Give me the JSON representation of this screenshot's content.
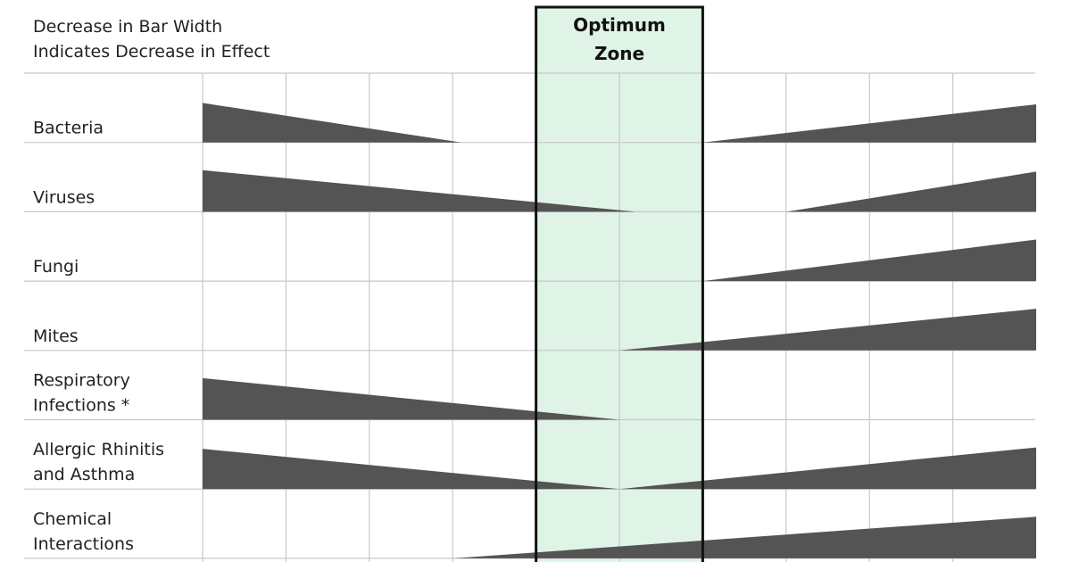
{
  "chart_data": {
    "type": "area",
    "title_lines": [
      "Decrease in Bar Width",
      "Indicates Decrease in Effect"
    ],
    "zone_label_lines": [
      "Optimum",
      "Zone"
    ],
    "zone_columns": [
      4,
      6
    ],
    "column_count": 10,
    "colors": {
      "wedge": "#545454",
      "zone_fill": "#dff3e6",
      "zone_border": "#111111",
      "grid": "#c8c8c8"
    },
    "grid": true,
    "rows": [
      {
        "label_lines": [
          "Bacteria"
        ],
        "left_wedge": {
          "start": 0,
          "end": 3.1,
          "thickness": 0.57
        },
        "right_wedge": {
          "start": 6,
          "end": 10,
          "thickness": 0.55
        }
      },
      {
        "label_lines": [
          "Viruses"
        ],
        "left_wedge": {
          "start": 0,
          "end": 5.2,
          "thickness": 0.6
        },
        "right_wedge": {
          "start": 7,
          "end": 10,
          "thickness": 0.58
        }
      },
      {
        "label_lines": [
          "Fungi"
        ],
        "left_wedge": null,
        "right_wedge": {
          "start": 6,
          "end": 10,
          "thickness": 0.6
        }
      },
      {
        "label_lines": [
          "Mites"
        ],
        "left_wedge": null,
        "right_wedge": {
          "start": 5,
          "end": 10,
          "thickness": 0.6
        }
      },
      {
        "label_lines": [
          "Respiratory",
          "Infections *"
        ],
        "left_wedge": {
          "start": 0,
          "end": 5,
          "thickness": 0.6
        },
        "right_wedge": null
      },
      {
        "label_lines": [
          "Allergic Rhinitis",
          "and Asthma"
        ],
        "left_wedge": {
          "start": 0,
          "end": 5,
          "thickness": 0.58
        },
        "right_wedge": {
          "start": 5,
          "end": 10,
          "thickness": 0.6
        }
      },
      {
        "label_lines": [
          "Chemical",
          "Interactions"
        ],
        "left_wedge": null,
        "right_wedge": {
          "start": 3,
          "end": 10,
          "thickness": 0.6
        }
      }
    ]
  }
}
